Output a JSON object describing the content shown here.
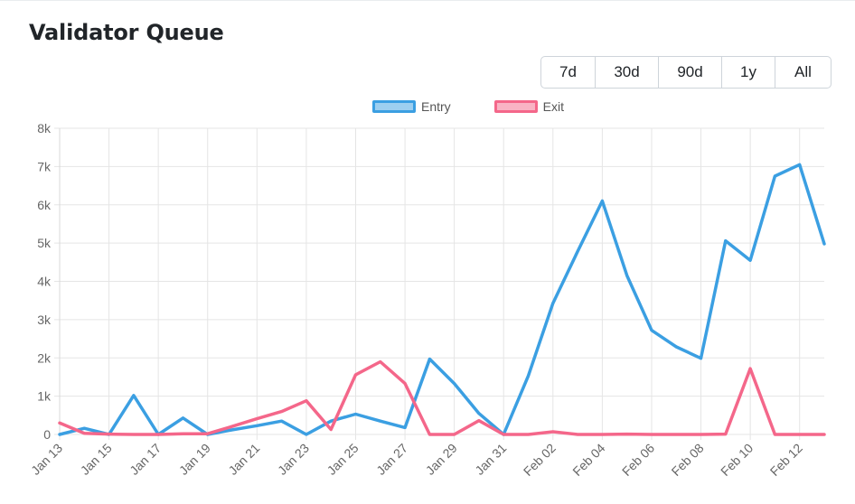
{
  "header": {
    "title": "Validator Queue"
  },
  "range_buttons": [
    "7d",
    "30d",
    "90d",
    "1y",
    "All"
  ],
  "colors": {
    "entry": "#3b9fe2",
    "exit": "#f4678a",
    "grid": "#e5e5e5",
    "tick": "#666666"
  },
  "chart_data": {
    "type": "line",
    "x": [
      "Jan 13",
      "Jan 14",
      "Jan 15",
      "Jan 16",
      "Jan 17",
      "Jan 18",
      "Jan 19",
      "Jan 20",
      "Jan 21",
      "Jan 22",
      "Jan 23",
      "Jan 24",
      "Jan 25",
      "Jan 26",
      "Jan 27",
      "Jan 28",
      "Jan 29",
      "Jan 30",
      "Jan 31",
      "Feb 01",
      "Feb 02",
      "Feb 03",
      "Feb 04",
      "Feb 05",
      "Feb 06",
      "Feb 07",
      "Feb 08",
      "Feb 09",
      "Feb 10",
      "Feb 11",
      "Feb 12",
      "Feb 13"
    ],
    "xtick_labels": [
      "Jan 13",
      "Jan 15",
      "Jan 17",
      "Jan 19",
      "Jan 21",
      "Jan 23",
      "Jan 25",
      "Jan 27",
      "Jan 29",
      "Jan 31",
      "Feb 02",
      "Feb 04",
      "Feb 06",
      "Feb 08",
      "Feb 10",
      "Feb 12"
    ],
    "series": [
      {
        "name": "Entry",
        "values": [
          0,
          160,
          0,
          1020,
          0,
          430,
          0,
          120,
          230,
          350,
          0,
          350,
          530,
          350,
          180,
          1970,
          1330,
          550,
          0,
          1530,
          3430,
          4780,
          6100,
          4150,
          2720,
          2290,
          1990,
          5060,
          4550,
          6750,
          7050,
          4980
        ]
      },
      {
        "name": "Exit",
        "values": [
          300,
          30,
          10,
          0,
          0,
          20,
          20,
          210,
          410,
          600,
          880,
          130,
          1560,
          1900,
          1330,
          0,
          0,
          360,
          0,
          0,
          70,
          0,
          0,
          10,
          0,
          0,
          0,
          10,
          1720,
          0,
          0,
          0
        ]
      }
    ],
    "ylim": [
      0,
      8000
    ],
    "yticks": [
      0,
      1000,
      2000,
      3000,
      4000,
      5000,
      6000,
      7000,
      8000
    ],
    "ytick_labels": [
      "0",
      "1k",
      "2k",
      "3k",
      "4k",
      "5k",
      "6k",
      "7k",
      "8k"
    ],
    "legend_position": "top-center",
    "grid": true
  }
}
